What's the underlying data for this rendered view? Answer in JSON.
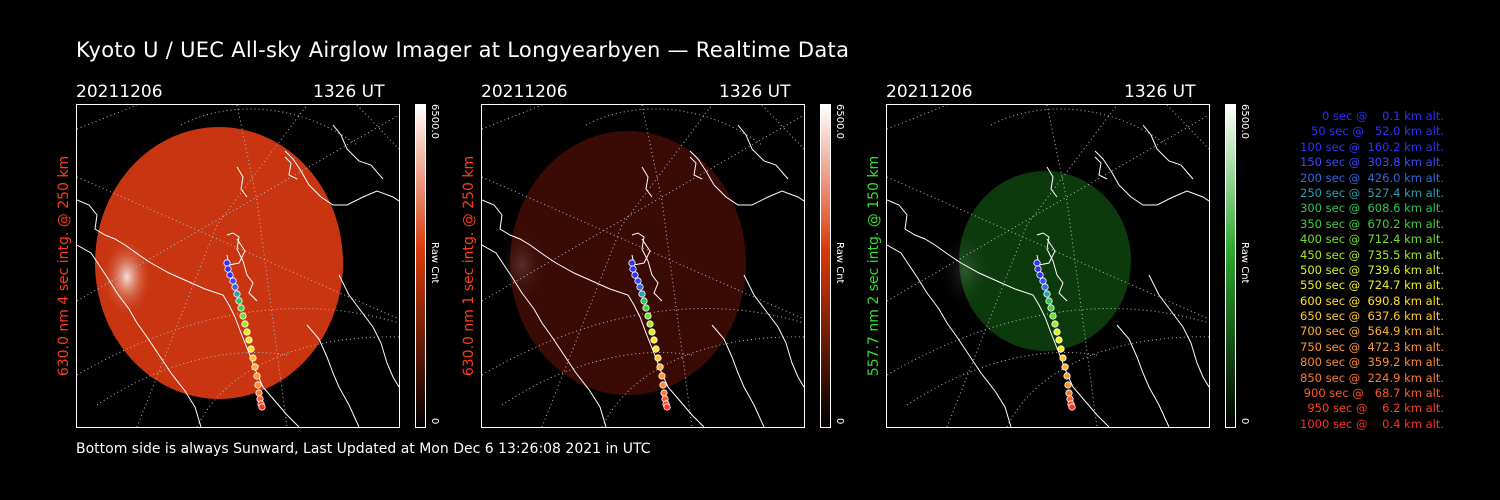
{
  "title": "Kyoto U / UEC All-sky Airglow Imager at Longyearbyen — Realtime Data",
  "footer": "Bottom side is always Sunward, Last Updated at Mon Dec  6 13:26:08 2021 in UTC",
  "panels": [
    {
      "date": "20211206",
      "time": "1326 UT",
      "ylabel": "630.0 nm 4 sec intg. @ 250 km",
      "ylabel_color": "#ff3b1a",
      "cbar_max": "6500.0",
      "cbar_unit": "Raw Cnt",
      "cbar_min": "0",
      "color_low": "#000000",
      "color_mid": "#d93a0a",
      "color_high": "#ffffff",
      "emission_color": "#c83510"
    },
    {
      "date": "20211206",
      "time": "1326 UT",
      "ylabel": "630.0 nm 1 sec intg. @ 250 km",
      "ylabel_color": "#ff3b1a",
      "cbar_max": "6500.0",
      "cbar_unit": "Raw Cnt",
      "cbar_min": "0",
      "color_low": "#000000",
      "color_mid": "#d93a0a",
      "color_high": "#ffffff",
      "emission_color": "#3a0a04"
    },
    {
      "date": "20211206",
      "time": "1326 UT",
      "ylabel": "557.7 nm 2 sec intg. @ 150 km",
      "ylabel_color": "#30e030",
      "cbar_max": "6500.0",
      "cbar_unit": "Raw Cnt",
      "cbar_min": "0",
      "color_low": "#000000",
      "color_mid": "#2ea82e",
      "color_high": "#ffffff",
      "emission_color": "#0d3a0d"
    }
  ],
  "legend": [
    {
      "text": "   0 sec @    0.1 km alt.",
      "color": "#3030ff"
    },
    {
      "text": "  50 sec @   52.0 km alt.",
      "color": "#3030ff"
    },
    {
      "text": " 100 sec @  160.2 km alt.",
      "color": "#3030ff"
    },
    {
      "text": " 150 sec @  303.8 km alt.",
      "color": "#3a4aff"
    },
    {
      "text": " 200 sec @  426.0 km alt.",
      "color": "#3068e0"
    },
    {
      "text": " 250 sec @  527.4 km alt.",
      "color": "#2aa0b0"
    },
    {
      "text": " 300 sec @  608.6 km alt.",
      "color": "#2ec45a"
    },
    {
      "text": " 350 sec @  670.2 km alt.",
      "color": "#40d040"
    },
    {
      "text": " 400 sec @  712.4 km alt.",
      "color": "#70e030"
    },
    {
      "text": " 450 sec @  735.5 km alt.",
      "color": "#a8e828"
    },
    {
      "text": " 500 sec @  739.6 km alt.",
      "color": "#d8f020"
    },
    {
      "text": " 550 sec @  724.7 km alt.",
      "color": "#f0f020"
    },
    {
      "text": " 600 sec @  690.8 km alt.",
      "color": "#ffe020"
    },
    {
      "text": " 650 sec @  637.6 km alt.",
      "color": "#ffc830"
    },
    {
      "text": " 700 sec @  564.9 km alt.",
      "color": "#ffb030"
    },
    {
      "text": " 750 sec @  472.3 km alt.",
      "color": "#ff9830"
    },
    {
      "text": " 800 sec @  359.2 km alt.",
      "color": "#ff8a30"
    },
    {
      "text": " 850 sec @  224.9 km alt.",
      "color": "#ff7a30"
    },
    {
      "text": " 900 sec @   68.7 km alt.",
      "color": "#ff5a28"
    },
    {
      "text": " 950 sec @    6.2 km alt.",
      "color": "#ff4020"
    },
    {
      "text": "1000 sec @    0.4 km alt.",
      "color": "#ff3020"
    }
  ]
}
